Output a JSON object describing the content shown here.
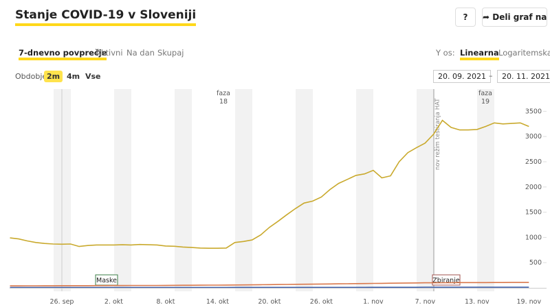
{
  "header": {
    "title": "Stanje COVID-19 v Sloveniji",
    "help": "?",
    "share": "Deli graf na"
  },
  "tabs": [
    "7-dnevno povprečje",
    "Aktivni",
    "Na dan",
    "Skupaj"
  ],
  "y_axis_label": "Y os:",
  "scales": [
    "Linearna",
    "Logaritemska"
  ],
  "period_label": "Obdobje",
  "periods": [
    "2m",
    "4m",
    "Vse"
  ],
  "date_from": "20. 09. 2021",
  "date_separator": "–",
  "date_to": "20. 11. 2021",
  "chart_data": {
    "type": "line",
    "categories": [
      null,
      null,
      null,
      null,
      null,
      null,
      "26. sep",
      null,
      null,
      null,
      null,
      null,
      "2. okt",
      null,
      null,
      null,
      null,
      null,
      "8. okt",
      null,
      null,
      null,
      null,
      null,
      "14. okt",
      null,
      null,
      null,
      null,
      null,
      "20. okt",
      null,
      null,
      null,
      null,
      null,
      "26. okt",
      null,
      null,
      null,
      null,
      null,
      "1. nov",
      null,
      null,
      null,
      null,
      null,
      "7. nov",
      null,
      null,
      null,
      null,
      null,
      "13. nov",
      null,
      null,
      null,
      null,
      null,
      "19. nov"
    ],
    "series": [
      {
        "color": "#c9a92c",
        "values": [
          990,
          970,
          930,
          900,
          880,
          870,
          865,
          870,
          820,
          840,
          850,
          850,
          850,
          855,
          850,
          860,
          855,
          850,
          830,
          825,
          810,
          800,
          790,
          785,
          785,
          790,
          900,
          920,
          950,
          1050,
          1200,
          1320,
          1450,
          1570,
          1680,
          1720,
          1800,
          1950,
          2070,
          2150,
          2230,
          2260,
          2330,
          2180,
          2220,
          2500,
          2680,
          2780,
          2870,
          3050,
          3320,
          3180,
          3130,
          3130,
          3140,
          3200,
          3270,
          3250,
          3260,
          3270,
          3200
        ]
      },
      {
        "color": "#d9774a",
        "values": [
          40,
          40,
          41,
          41,
          42,
          42,
          43,
          43,
          44,
          44,
          45,
          45,
          46,
          46,
          47,
          47,
          48,
          48,
          49,
          50,
          51,
          52,
          53,
          54,
          55,
          56,
          57,
          58,
          60,
          62,
          64,
          66,
          68,
          70,
          72,
          74,
          76,
          78,
          80,
          82,
          84,
          86,
          88,
          90,
          92,
          94,
          96,
          98,
          100,
          101,
          102,
          103,
          104,
          104,
          105,
          105,
          106,
          106,
          107,
          107,
          108
        ]
      },
      {
        "color": "#3f5fa8",
        "values": [
          8,
          8,
          8,
          8,
          8,
          8,
          8,
          8,
          8,
          8,
          8,
          8,
          8,
          8,
          8,
          8,
          8,
          8,
          8,
          8,
          8,
          8,
          8,
          8,
          8,
          8,
          9,
          9,
          9,
          9,
          9,
          9,
          9,
          9,
          10,
          10,
          10,
          10,
          10,
          10,
          10,
          10,
          11,
          11,
          11,
          11,
          11,
          11,
          12,
          12,
          12,
          12,
          12,
          12,
          12,
          12,
          12,
          12,
          12,
          12,
          12
        ]
      }
    ],
    "ylim": [
      0,
      3940
    ],
    "yticks": [
      500,
      1000,
      1500,
      2000,
      2500,
      3000,
      3500
    ],
    "annotations": {
      "phase18": [
        "faza",
        "18"
      ],
      "phase19": [
        "faza",
        "19"
      ],
      "testing": "nov režim testiranja HAT",
      "masks": "Maske",
      "gathering": "Zbiranje"
    }
  }
}
